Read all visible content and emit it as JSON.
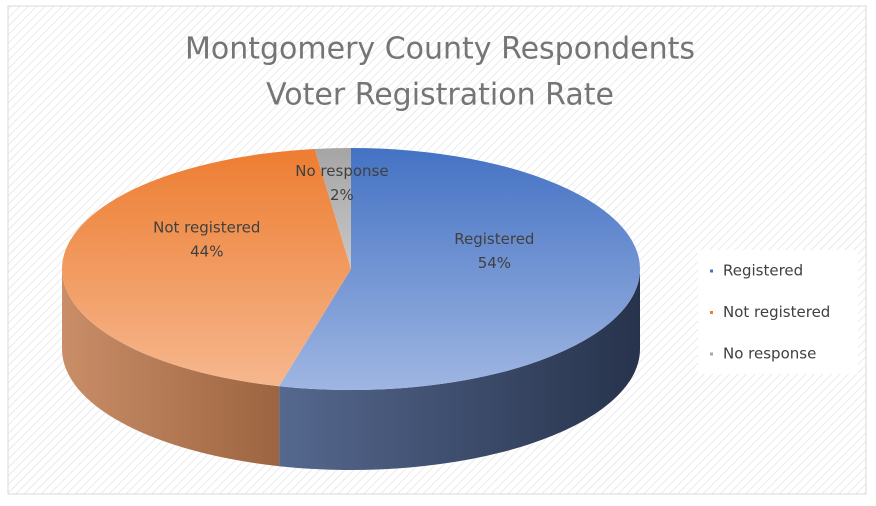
{
  "chart_data": {
    "type": "pie3d",
    "title": [
      "Montgomery County Respondents",
      "Voter Registration Rate"
    ],
    "categories": [
      "Registered",
      "Not registered",
      "No response"
    ],
    "values": [
      54,
      44,
      2
    ],
    "value_labels": [
      "54%",
      "44%",
      "2%"
    ],
    "colors": [
      "#4472c4",
      "#ed7d31",
      "#a5a5a5"
    ],
    "legend": "right"
  }
}
